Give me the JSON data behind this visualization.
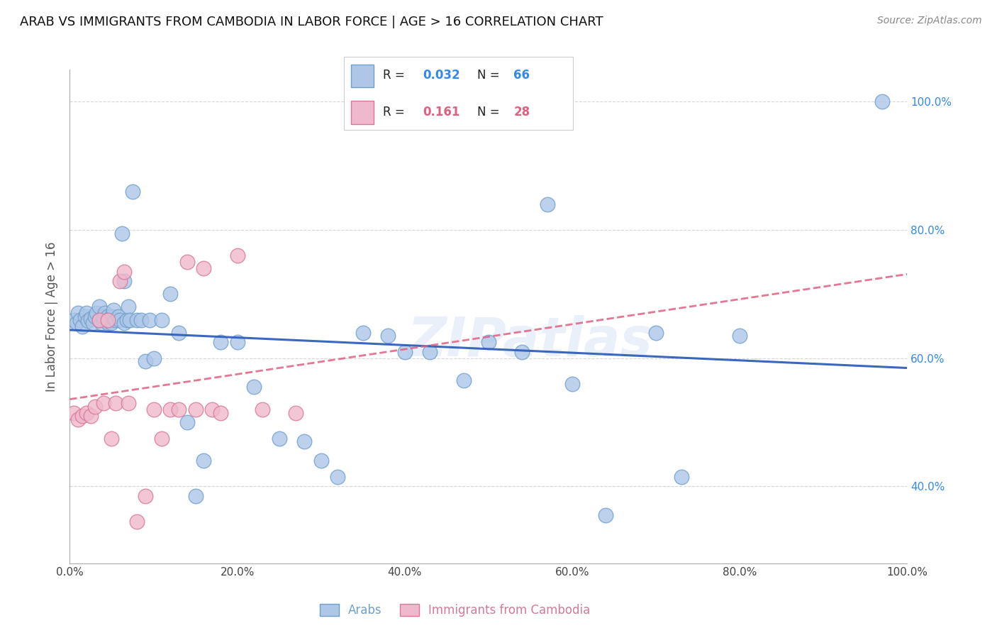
{
  "title": "ARAB VS IMMIGRANTS FROM CAMBODIA IN LABOR FORCE | AGE > 16 CORRELATION CHART",
  "source": "Source: ZipAtlas.com",
  "ylabel": "In Labor Force | Age > 16",
  "xlim": [
    0.0,
    1.0
  ],
  "ylim": [
    0.28,
    1.05
  ],
  "background_color": "#ffffff",
  "grid_color": "#cccccc",
  "watermark": "ZIPatlas",
  "arab_color": "#aec6e8",
  "arab_edge_color": "#6fa0cc",
  "camb_color": "#f0b8cc",
  "camb_edge_color": "#d67898",
  "arab_R": "0.032",
  "arab_N": "66",
  "camb_R": "0.161",
  "camb_N": "28",
  "line_blue_color": "#3060bb",
  "line_pink_color": "#e06080",
  "legend_R_color_blue": "#3388ee",
  "legend_R_color_pink": "#e06080",
  "arab_x": [
    0.005,
    0.008,
    0.01,
    0.012,
    0.015,
    0.018,
    0.02,
    0.022,
    0.025,
    0.028,
    0.03,
    0.032,
    0.035,
    0.035,
    0.038,
    0.04,
    0.04,
    0.042,
    0.045,
    0.045,
    0.048,
    0.05,
    0.05,
    0.052,
    0.055,
    0.058,
    0.06,
    0.062,
    0.065,
    0.065,
    0.068,
    0.07,
    0.072,
    0.075,
    0.08,
    0.085,
    0.09,
    0.095,
    0.1,
    0.11,
    0.12,
    0.13,
    0.14,
    0.15,
    0.16,
    0.18,
    0.2,
    0.22,
    0.25,
    0.28,
    0.3,
    0.32,
    0.35,
    0.38,
    0.4,
    0.43,
    0.47,
    0.5,
    0.54,
    0.57,
    0.6,
    0.64,
    0.7,
    0.73,
    0.8,
    0.97
  ],
  "arab_y": [
    0.66,
    0.655,
    0.67,
    0.66,
    0.65,
    0.665,
    0.67,
    0.658,
    0.662,
    0.655,
    0.665,
    0.67,
    0.66,
    0.68,
    0.655,
    0.66,
    0.665,
    0.67,
    0.655,
    0.665,
    0.66,
    0.655,
    0.665,
    0.675,
    0.66,
    0.665,
    0.66,
    0.795,
    0.655,
    0.72,
    0.66,
    0.68,
    0.66,
    0.86,
    0.66,
    0.66,
    0.595,
    0.66,
    0.6,
    0.66,
    0.7,
    0.64,
    0.5,
    0.385,
    0.44,
    0.625,
    0.625,
    0.555,
    0.475,
    0.47,
    0.44,
    0.415,
    0.64,
    0.635,
    0.61,
    0.61,
    0.565,
    0.625,
    0.61,
    0.84,
    0.56,
    0.355,
    0.64,
    0.415,
    0.635,
    1.0
  ],
  "camb_x": [
    0.005,
    0.01,
    0.015,
    0.02,
    0.025,
    0.03,
    0.035,
    0.04,
    0.045,
    0.05,
    0.055,
    0.06,
    0.065,
    0.07,
    0.08,
    0.09,
    0.1,
    0.11,
    0.12,
    0.13,
    0.14,
    0.15,
    0.16,
    0.17,
    0.18,
    0.2,
    0.23,
    0.27
  ],
  "camb_y": [
    0.515,
    0.505,
    0.51,
    0.515,
    0.51,
    0.525,
    0.66,
    0.53,
    0.66,
    0.475,
    0.53,
    0.72,
    0.735,
    0.53,
    0.345,
    0.385,
    0.52,
    0.475,
    0.52,
    0.52,
    0.75,
    0.52,
    0.74,
    0.52,
    0.515,
    0.76,
    0.52,
    0.515
  ]
}
